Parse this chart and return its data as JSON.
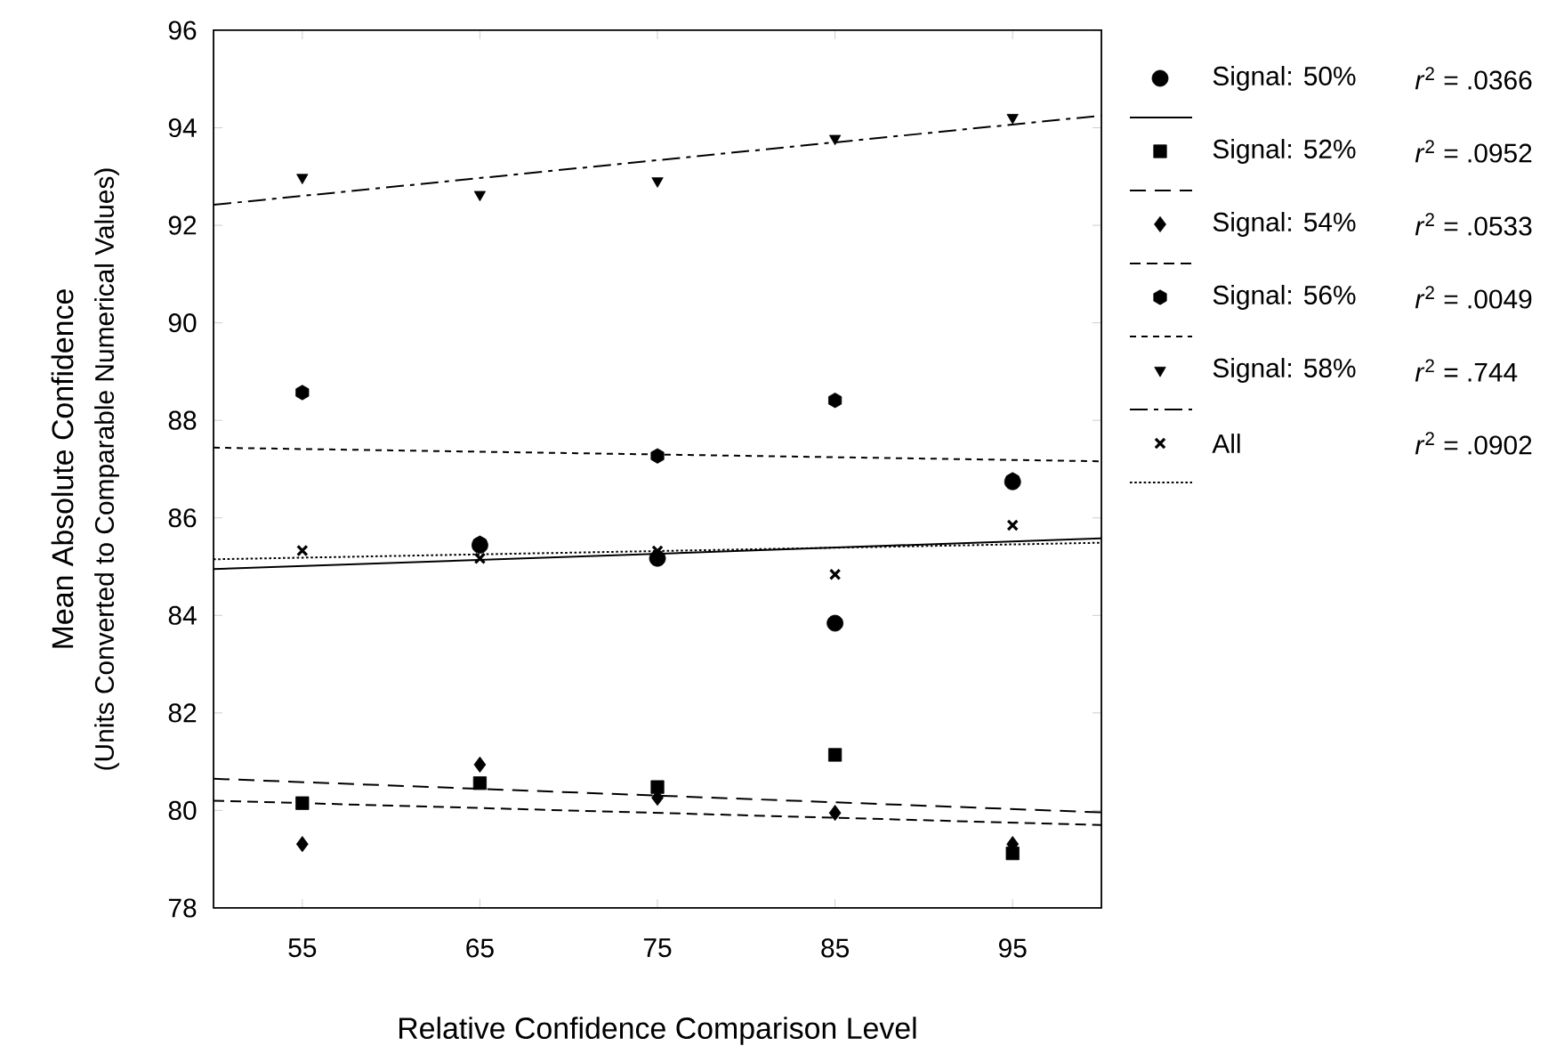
{
  "chart_data": {
    "type": "scatter",
    "xlabel": "Relative Confidence Comparison Level",
    "ylabel": "Mean Absolute Confidence",
    "annotations": [
      "(Units Converted to Comparable Numerical Values)",
      "*r*$^{2}$ = .0366",
      "*r*$^{2}$ = .0952",
      "*r*$^{2}$ = .0533",
      "*r*$^{2}$ = .0049",
      "*r*$^{2}$ = .744",
      "*r*$^{2}$ = .0902"
    ],
    "xlim": [
      50,
      100
    ],
    "ylim": [
      78,
      96
    ],
    "xticks": [
      55,
      65,
      75,
      85,
      95
    ],
    "yticks": [
      78,
      80,
      82,
      84,
      86,
      88,
      90,
      92,
      94,
      96
    ],
    "legend": "right",
    "series": [
      {
        "name": "Signal: 50%",
        "marker": "circle",
        "color": "#000000",
        "x": [
          65,
          75,
          85,
          95
        ],
        "values": [
          85.44,
          85.17,
          83.84,
          86.74
        ]
      },
      {
        "type": "line",
        "line_style": "solid",
        "color": "#000000",
        "x": [
          50,
          100
        ],
        "values": [
          84.95,
          85.58
        ]
      },
      {
        "name": "Signal: 52%",
        "marker": "square",
        "color": "#000000",
        "x": [
          55,
          65,
          75,
          85,
          95
        ],
        "values": [
          80.15,
          80.56,
          80.48,
          81.14,
          79.12
        ]
      },
      {
        "type": "line",
        "line_style": "long dashed",
        "color": "#000000",
        "x": [
          50,
          100
        ],
        "values": [
          80.65,
          79.96
        ]
      },
      {
        "name": "Signal: 54%",
        "marker": "diamond",
        "color": "#000000",
        "x": [
          55,
          65,
          75,
          85,
          95
        ],
        "values": [
          79.31,
          80.94,
          80.26,
          79.95,
          79.31
        ]
      },
      {
        "type": "line",
        "line_style": "dashed",
        "color": "#000000",
        "x": [
          50,
          100
        ],
        "values": [
          80.2,
          79.7
        ]
      },
      {
        "name": "Signal: 56%",
        "color": "#000000",
        "x": [
          55,
          65,
          75,
          85,
          95
        ],
        "values": [
          88.57,
          85.48,
          87.27,
          88.41,
          86.78
        ]
      },
      {
        "type": "line",
        "line_style": "densely dashed",
        "color": "#000000",
        "x": [
          50,
          100
        ],
        "values": [
          87.44,
          87.16
        ]
      },
      {
        "name": "Signal: 58%",
        "marker": "triangle",
        "color": "#000000",
        "x": [
          55,
          65,
          75,
          85,
          95
        ],
        "values": [
          92.98,
          92.63,
          92.91,
          93.78,
          94.21
        ]
      },
      {
        "type": "line",
        "line_style": "dash dot",
        "color": "#000000",
        "x": [
          50,
          100
        ],
        "values": [
          92.42,
          94.25
        ]
      },
      {
        "name": "All",
        "marker": "cross",
        "color": "#000000",
        "x": [
          55,
          65,
          75,
          85,
          95
        ],
        "values": [
          85.33,
          85.17,
          85.32,
          84.84,
          85.85
        ]
      },
      {
        "type": "line",
        "line_style": "dotted",
        "color": "#000000",
        "x": [
          50,
          100
        ],
        "values": [
          85.15,
          85.49
        ]
      }
    ]
  }
}
